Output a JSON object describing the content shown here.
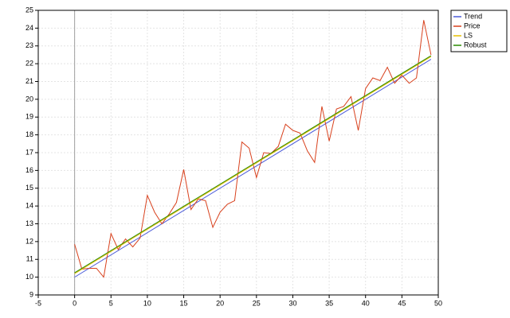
{
  "chart_data": {
    "type": "line",
    "x": [
      0,
      1,
      2,
      3,
      4,
      5,
      6,
      7,
      8,
      9,
      10,
      11,
      12,
      13,
      14,
      15,
      16,
      17,
      18,
      19,
      20,
      21,
      22,
      23,
      24,
      25,
      26,
      27,
      28,
      29,
      30,
      31,
      32,
      33,
      34,
      35,
      36,
      37,
      38,
      39,
      40,
      41,
      42,
      43,
      44,
      45,
      46,
      47,
      48,
      49
    ],
    "series": [
      {
        "name": "Trend",
        "color": "#4a5ad8",
        "x": [
          0,
          49
        ],
        "values": [
          10.0,
          22.25
        ]
      },
      {
        "name": "Price",
        "color": "#d8401c",
        "values": [
          11.85,
          10.45,
          10.5,
          10.5,
          10.0,
          12.45,
          11.55,
          12.15,
          11.7,
          12.2,
          14.6,
          13.65,
          13.0,
          13.55,
          14.2,
          16.05,
          13.8,
          14.4,
          14.3,
          12.8,
          13.65,
          14.1,
          14.3,
          17.6,
          17.25,
          15.6,
          17.0,
          16.95,
          17.35,
          18.6,
          18.25,
          18.1,
          17.1,
          16.45,
          19.6,
          17.65,
          19.45,
          19.6,
          20.15,
          18.25,
          20.6,
          21.2,
          21.05,
          21.8,
          20.9,
          21.35,
          20.9,
          21.2,
          24.45,
          22.5
        ]
      },
      {
        "name": "LS",
        "color": "#e8c000",
        "x": [
          0,
          49
        ],
        "values": [
          10.2,
          22.4
        ]
      },
      {
        "name": "Robust",
        "color": "#2a8a00",
        "x": [
          0,
          49
        ],
        "values": [
          10.25,
          22.45
        ]
      }
    ],
    "xlim": [
      -5,
      50
    ],
    "xticks": [
      -5,
      0,
      5,
      10,
      15,
      20,
      25,
      30,
      35,
      40,
      45,
      50
    ],
    "ylim": [
      9,
      25
    ],
    "yticks": [
      9,
      10,
      11,
      12,
      13,
      14,
      15,
      16,
      17,
      18,
      19,
      20,
      21,
      22,
      23,
      24,
      25
    ],
    "grid": true,
    "legend": "top-right"
  }
}
